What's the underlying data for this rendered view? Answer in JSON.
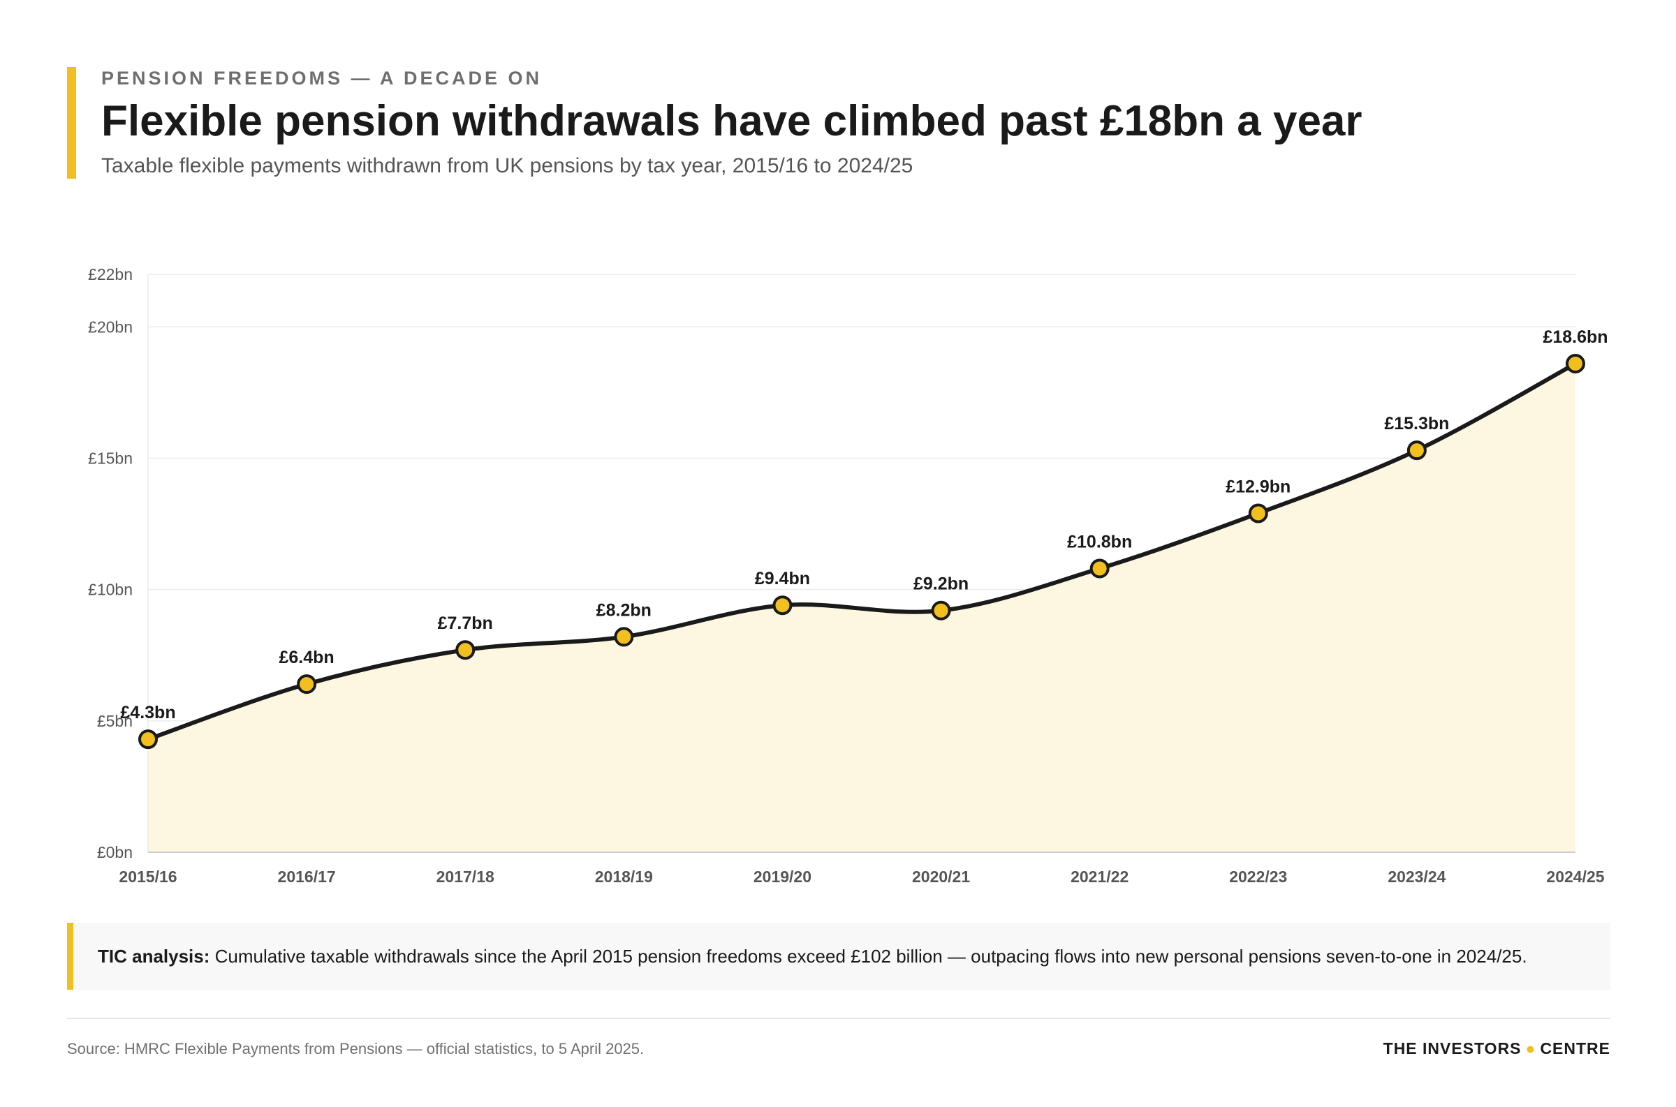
{
  "header": {
    "eyebrow": "PENSION FREEDOMS — A DECADE ON",
    "title": "Flexible pension withdrawals have climbed past £18bn a year",
    "subtitle": "Taxable flexible payments withdrawn from UK pensions by tax year, 2015/16 to 2024/25"
  },
  "chart_data": {
    "type": "area",
    "title": "Flexible pension withdrawals have climbed past £18bn a year",
    "subtitle": "Taxable flexible payments withdrawn from UK pensions by tax year, 2015/16 to 2024/25",
    "xlabel": "",
    "ylabel": "",
    "categories": [
      "2015/16",
      "2016/17",
      "2017/18",
      "2018/19",
      "2019/20",
      "2020/21",
      "2021/22",
      "2022/23",
      "2023/24",
      "2024/25"
    ],
    "series": [
      {
        "values": [
          4.3,
          6.4,
          7.7,
          8.2,
          9.4,
          9.2,
          10.8,
          12.9,
          15.3,
          18.6
        ],
        "labels": [
          "£4.3bn",
          "£6.4bn",
          "£7.7bn",
          "£8.2bn",
          "£9.4bn",
          "£9.2bn",
          "£10.8bn",
          "£12.9bn",
          "£15.3bn",
          "£18.6bn"
        ]
      }
    ],
    "ylim": [
      0,
      22
    ],
    "yticks": [
      {
        "value": 0,
        "label": "£0bn"
      },
      {
        "value": 5,
        "label": "£5bn"
      },
      {
        "value": 10,
        "label": "£10bn"
      },
      {
        "value": 15,
        "label": "£15bn"
      },
      {
        "value": 20,
        "label": "£20bn"
      },
      {
        "value": 22,
        "label": "£22bn"
      }
    ],
    "grid": true,
    "legend": "none",
    "colors": {
      "line": "#1a1a1a",
      "marker_fill": "#F2C01E",
      "area_fill": "#FDF7E1",
      "grid": "#ebebeb",
      "axis": "#cccccc"
    }
  },
  "callout": {
    "label": "TIC analysis:",
    "text": "Cumulative taxable withdrawals since the April 2015 pension freedoms exceed £102 billion — outpacing flows into new personal pensions seven-to-one in 2024/25."
  },
  "footer": {
    "source": "Source: HMRC Flexible Payments from Pensions — official statistics, to 5 April 2025.",
    "brand_left": "THE INVESTORS",
    "brand_dot": "●",
    "brand_right": "CENTRE"
  }
}
